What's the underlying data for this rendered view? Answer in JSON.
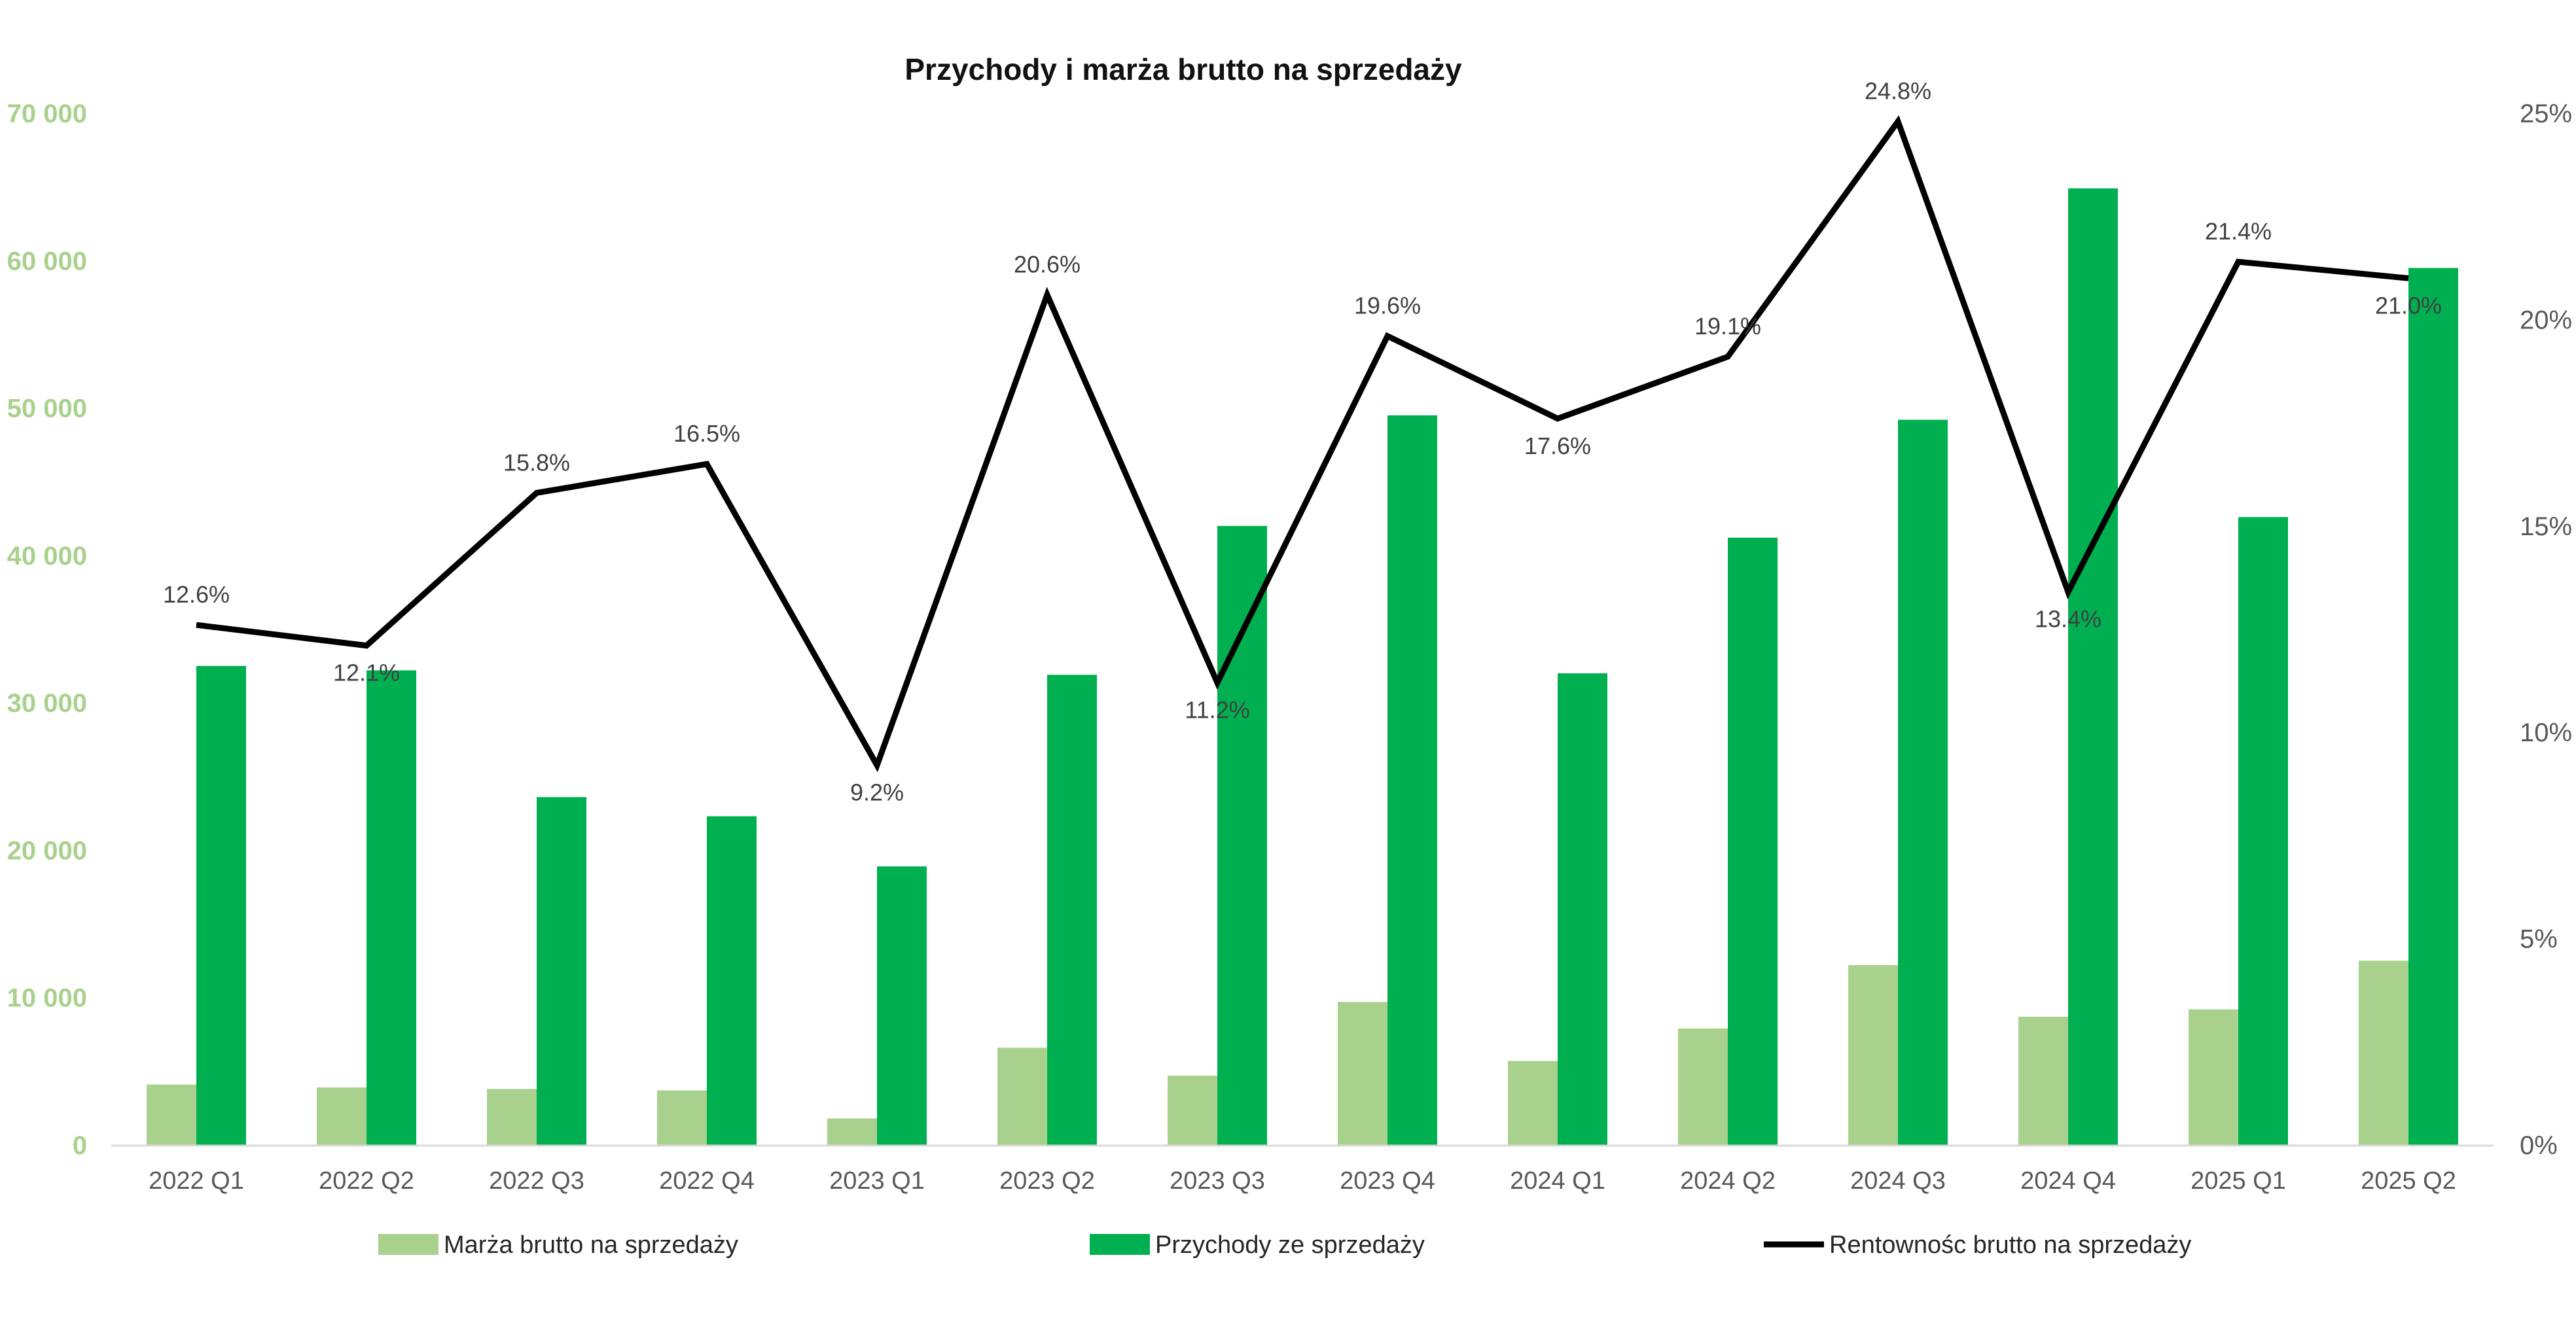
{
  "colors": {
    "margin_bar": "#a9d18e",
    "revenue_bar": "#00b050",
    "profitability_line": "#000000",
    "left_axis_text": "#a9d18e",
    "right_axis_text": "#595959",
    "axis_line": "#d9d9d9"
  },
  "chart_data": {
    "type": "bar",
    "title": "Przychody i marża brutto na sprzedaży",
    "categories": [
      "2022 Q1",
      "2022 Q2",
      "2022 Q3",
      "2022 Q4",
      "2023 Q1",
      "2023 Q2",
      "2023 Q3",
      "2023 Q4",
      "2024 Q1",
      "2024 Q2",
      "2024 Q3",
      "2024 Q4",
      "2025 Q1",
      "2025 Q2"
    ],
    "series": [
      {
        "name": "Marża brutto na sprzedaży",
        "type": "bar",
        "axis": "left",
        "values": [
          4100,
          3900,
          3800,
          3700,
          1800,
          6600,
          4700,
          9700,
          5700,
          7900,
          12200,
          8700,
          9200,
          12500
        ]
      },
      {
        "name": "Przychody ze sprzedaży",
        "type": "bar",
        "axis": "left",
        "values": [
          32500,
          32200,
          23600,
          22300,
          18900,
          31900,
          42000,
          49500,
          32000,
          41200,
          49200,
          64900,
          42600,
          59500
        ]
      },
      {
        "name": "Rentownośc brutto na sprzedaży",
        "type": "line",
        "axis": "right",
        "values": [
          0.126,
          0.121,
          0.158,
          0.165,
          0.092,
          0.206,
          0.112,
          0.196,
          0.176,
          0.191,
          0.248,
          0.134,
          0.214,
          0.21
        ],
        "data_labels": [
          "12.6%",
          "12.1%",
          "15.8%",
          "16.5%",
          "9.2%",
          "20.6%",
          "11.2%",
          "19.6%",
          "17.6%",
          "19.1%",
          "24.8%",
          "13.4%",
          "21.4%",
          "21.0%"
        ]
      }
    ],
    "y_left": {
      "ylim": [
        0,
        70000
      ],
      "ticks": [
        0,
        10000,
        20000,
        30000,
        40000,
        50000,
        60000,
        70000
      ],
      "tick_labels": [
        "0",
        "10 000",
        "20 000",
        "30 000",
        "40 000",
        "50 000",
        "60 000",
        "70 000"
      ]
    },
    "y_right": {
      "ylim": [
        0,
        0.25
      ],
      "ticks": [
        0,
        0.05,
        0.1,
        0.15,
        0.2,
        0.25
      ],
      "tick_labels": [
        "0%",
        "5%",
        "10%",
        "15%",
        "20%",
        "25%"
      ]
    },
    "grid": false,
    "legend": {
      "placement": "bottom",
      "entries": [
        "Marża brutto na sprzedaży",
        "Przychody ze sprzedaży",
        "Rentownośc brutto na sprzedaży"
      ]
    }
  }
}
